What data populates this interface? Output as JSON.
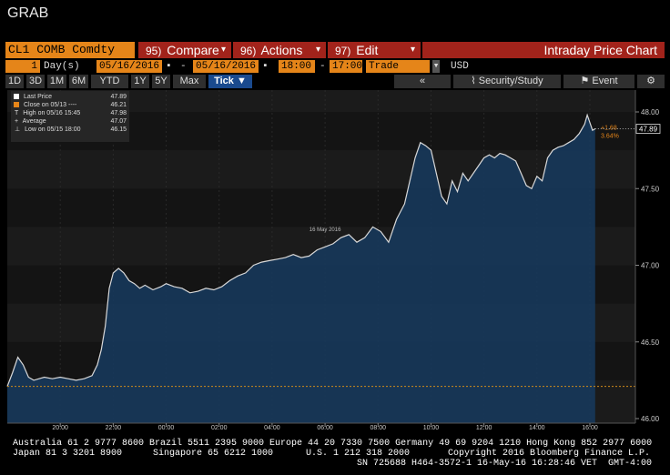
{
  "window": {
    "title": "GRAB"
  },
  "command": {
    "security": "CL1 COMB Comdty",
    "compare_num": "95)",
    "compare_label": "Compare",
    "actions_num": "96)",
    "actions_label": "Actions",
    "edit_num": "97)",
    "edit_label": "Edit",
    "view_title": "Intraday Price Chart"
  },
  "range": {
    "period_count": "1",
    "period_unit": "Day(s)",
    "start_date": "05/16/2016",
    "separator": "-",
    "end_date": "05/16/2016",
    "start_time": "18:00",
    "time_separator": "-",
    "end_time": "17:00",
    "market": "Trade",
    "currency": "USD"
  },
  "toolbar": {
    "periods": [
      "1D",
      "3D",
      "1M",
      "6M",
      "YTD",
      "1Y",
      "5Y",
      "Max"
    ],
    "tick_label": "Tick ▼",
    "back_label": "«",
    "security_study_label": "Security/Study",
    "event_label": "Event",
    "settings_icon": "gear-icon"
  },
  "legend": {
    "last_price_label": "Last Price",
    "last_price_value": "47.89",
    "close_label": "Close on 05/13 ----",
    "close_value": "46.21",
    "high_label": "High on 05/16 15:45",
    "high_value": "47.98",
    "average_label": "Average",
    "average_value": "47.07",
    "low_label": "Low on 05/15 18:00",
    "low_value": "46.15"
  },
  "price_tag": {
    "last": "47.89",
    "change": "+1.68",
    "change_pct": "3.64%"
  },
  "colors": {
    "accent_orange": "#e58519",
    "command_red": "#a2231b",
    "area_fill": "#163a5e",
    "line": "#d8d8d8",
    "close_line": "#d08a1a",
    "tick_blue": "#1a4a8e"
  },
  "chart_data": {
    "type": "area",
    "date_label": "16 May 2016",
    "x_tick_labels": [
      "20:00",
      "22:00",
      "00:00",
      "02:00",
      "04:00",
      "06:00",
      "08:00",
      "10:00",
      "12:00",
      "14:00",
      "16:00"
    ],
    "y_tick_labels": [
      "48.00",
      "47.50",
      "47.00",
      "46.50",
      "46.00"
    ],
    "ylim": [
      45.99,
      48.06
    ],
    "x_hours": [
      -6,
      17.5
    ],
    "reference_close": 46.21,
    "series": [
      {
        "x": [
          -6,
          -5.8,
          -5.6,
          -5.4,
          -5.2,
          -5.0,
          -4.8,
          -4.6,
          -4.3,
          -4.0,
          -3.7,
          -3.4,
          -3.1,
          -2.8,
          -2.6,
          -2.45,
          -2.3,
          -2.15,
          -2.0,
          -1.8,
          -1.6,
          -1.4,
          -1.2,
          -1.0,
          -0.8,
          -0.5,
          -0.2,
          0.0,
          0.3,
          0.6,
          0.9,
          1.2,
          1.5,
          1.8,
          2.1,
          2.4,
          2.7,
          3.0,
          3.3,
          3.6,
          3.9,
          4.2,
          4.5,
          4.8,
          5.1,
          5.4,
          5.7,
          6.0,
          6.3,
          6.6,
          6.9,
          7.2,
          7.5,
          7.8,
          8.1,
          8.4,
          8.7,
          9.0,
          9.2,
          9.4,
          9.6,
          9.8,
          10.0,
          10.2,
          10.4,
          10.6,
          10.8,
          11.0,
          11.2,
          11.4,
          11.6,
          11.8,
          12.0,
          12.2,
          12.4,
          12.6,
          12.8,
          13.0,
          13.2,
          13.4,
          13.6,
          13.8,
          14.0,
          14.2,
          14.4,
          14.6,
          14.8,
          15.0,
          15.2,
          15.4,
          15.6,
          15.8,
          15.9,
          16.0,
          16.1,
          16.2
        ],
        "y": [
          46.21,
          46.3,
          46.4,
          46.35,
          46.27,
          46.25,
          46.26,
          46.27,
          46.26,
          46.27,
          46.26,
          46.25,
          46.26,
          46.28,
          46.35,
          46.45,
          46.6,
          46.85,
          46.95,
          46.98,
          46.95,
          46.9,
          46.88,
          46.85,
          46.87,
          46.84,
          46.86,
          46.88,
          46.86,
          46.85,
          46.82,
          46.83,
          46.85,
          46.84,
          46.86,
          46.9,
          46.93,
          46.95,
          47.0,
          47.02,
          47.03,
          47.04,
          47.05,
          47.07,
          47.05,
          47.06,
          47.1,
          47.12,
          47.14,
          47.18,
          47.2,
          47.15,
          47.18,
          47.25,
          47.22,
          47.15,
          47.3,
          47.4,
          47.55,
          47.7,
          47.8,
          47.78,
          47.75,
          47.6,
          47.45,
          47.4,
          47.55,
          47.48,
          47.6,
          47.55,
          47.6,
          47.65,
          47.7,
          47.72,
          47.7,
          47.73,
          47.72,
          47.7,
          47.68,
          47.6,
          47.52,
          47.5,
          47.58,
          47.55,
          47.7,
          47.75,
          47.77,
          47.78,
          47.8,
          47.82,
          47.86,
          47.92,
          47.98,
          47.93,
          47.88,
          47.89
        ],
        "color": "#d8d8d8"
      }
    ]
  },
  "footer": {
    "line1": "Australia 61 2 9777 8600 Brazil 5511 2395 9000 Europe 44 20 7330 7500 Germany 49 69 9204 1210 Hong Kong 852 2977 6000",
    "line2a": "Japan 81 3 3201 8900",
    "line2b": "Singapore 65 6212 1000",
    "line2c": "U.S. 1 212 318 2000",
    "line2d": "Copyright 2016 Bloomberg Finance L.P.",
    "line3": "SN 725688 H464-3572-1 16-May-16 16:28:46 VET  GMT-4:00"
  }
}
